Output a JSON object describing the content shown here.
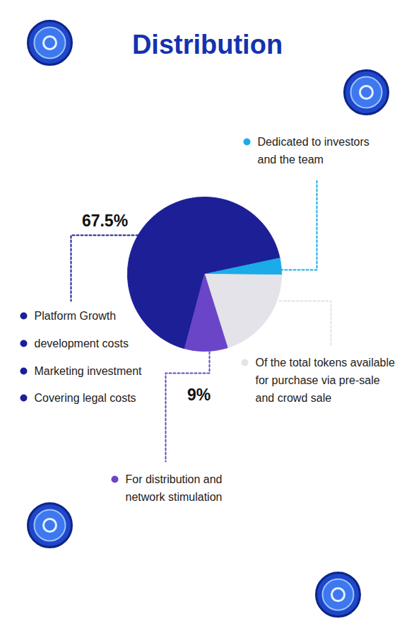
{
  "chart_data": {
    "type": "pie",
    "title": "Distribution",
    "categories": [
      [
        "Platform Growth",
        "development costs",
        "Marketing investment",
        "Covering legal costs"
      ],
      [
        "Dedicated to investors and the team"
      ],
      [
        "Of the total tokens available for purchase via pre-sale and crowd sale"
      ],
      [
        "For distribution and network stimulation"
      ]
    ],
    "values": [
      67.5,
      3.5,
      20,
      9
    ],
    "value_labels": [
      "67.5%",
      null,
      null,
      "9%"
    ],
    "data_labels": true,
    "colors": [
      "#1c1f95",
      "#1aabe8",
      "#e3e3e9",
      "#6a45c8"
    ]
  }
}
